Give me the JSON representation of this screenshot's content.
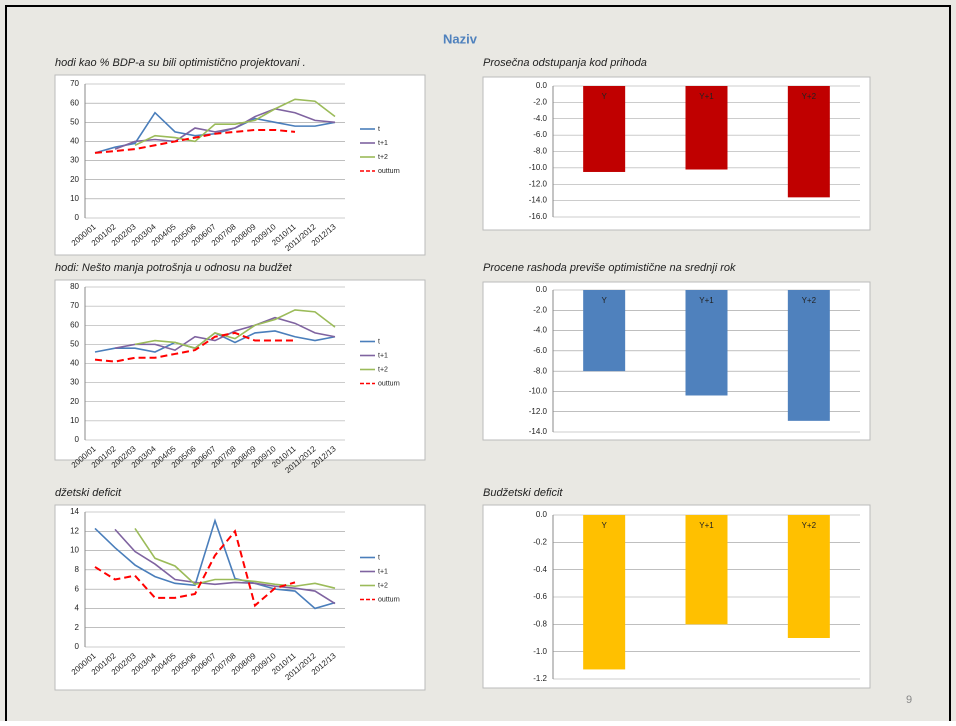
{
  "title": "Naziv",
  "page_number": "9",
  "chart_data": [
    {
      "type": "line",
      "title": "hodi kao % BDP-a  su bili optimistično projektovani .",
      "categories": [
        "2000/01",
        "2001/02",
        "2002/03",
        "2003/04",
        "2004/05",
        "2005/06",
        "2006/07",
        "2007/08",
        "2008/09",
        "2009/10",
        "2010/11",
        "2011/2012",
        "2012/13"
      ],
      "series": [
        {
          "name": "t",
          "color": "#4a7ebb",
          "values": [
            34,
            37,
            39,
            55,
            45,
            43,
            44,
            47,
            52,
            50,
            48,
            48,
            50
          ]
        },
        {
          "name": "t+1",
          "color": "#7f63a0",
          "values": [
            null,
            36,
            40,
            41,
            40,
            47,
            45,
            47,
            53,
            57,
            55,
            51,
            50
          ]
        },
        {
          "name": "t+2",
          "color": "#9bbb59",
          "values": [
            null,
            null,
            38,
            43,
            42,
            40,
            49,
            49,
            51,
            57,
            62,
            61,
            53
          ]
        },
        {
          "name": "outturn",
          "color": "#ff0000",
          "dashed": true,
          "values": [
            34,
            35,
            36,
            38,
            40,
            42,
            44,
            45,
            46,
            46,
            45,
            null,
            null
          ]
        }
      ],
      "ylim": [
        0,
        70
      ],
      "yticks": [
        0,
        10,
        20,
        30,
        40,
        50,
        60,
        70
      ],
      "grid": true
    },
    {
      "type": "line",
      "title": "hodi: Nešto manja potrošnja u odnosu na budžet",
      "categories": [
        "2000/01",
        "2001/02",
        "2002/03",
        "2003/04",
        "2004/05",
        "2005/06",
        "2006/07",
        "2007/08",
        "2008/09",
        "2009/10",
        "2010/11",
        "2011/2012",
        "2012/13"
      ],
      "series": [
        {
          "name": "t",
          "color": "#4a7ebb",
          "values": [
            46,
            48,
            48,
            46,
            51,
            48,
            56,
            51,
            56,
            57,
            54,
            52,
            54
          ]
        },
        {
          "name": "t+1",
          "color": "#7f63a0",
          "values": [
            null,
            48,
            50,
            50,
            47,
            54,
            52,
            57,
            60,
            64,
            61,
            56,
            54
          ]
        },
        {
          "name": "t+2",
          "color": "#9bbb59",
          "values": [
            null,
            null,
            50,
            52,
            51,
            48,
            56,
            53,
            60,
            63,
            68,
            67,
            59
          ]
        },
        {
          "name": "outturn",
          "color": "#ff0000",
          "dashed": true,
          "values": [
            42,
            41,
            43,
            43,
            45,
            47,
            54,
            56,
            52,
            52,
            52,
            null,
            null
          ]
        }
      ],
      "ylim": [
        0,
        80
      ],
      "yticks": [
        0,
        10,
        20,
        30,
        40,
        50,
        60,
        70,
        80
      ],
      "grid": true
    },
    {
      "type": "line",
      "title": "džetski deficit",
      "categories": [
        "2000/01",
        "2001/02",
        "2002/03",
        "2003/04",
        "2004/05",
        "2005/06",
        "2006/07",
        "2007/08",
        "2008/09",
        "2009/10",
        "2010/11",
        "2011/2012",
        "2012/13"
      ],
      "series": [
        {
          "name": "t",
          "color": "#4a7ebb",
          "values": [
            12.3,
            10.3,
            8.5,
            7.3,
            6.6,
            6.4,
            13.1,
            7.1,
            6.6,
            6.0,
            5.8,
            4.0,
            4.6
          ]
        },
        {
          "name": "t+1",
          "color": "#7f63a0",
          "values": [
            null,
            12.2,
            9.9,
            8.6,
            7.0,
            6.7,
            6.5,
            6.7,
            6.6,
            6.3,
            6.1,
            5.8,
            4.5
          ]
        },
        {
          "name": "t+2",
          "color": "#9bbb59",
          "values": [
            null,
            null,
            12.3,
            9.2,
            8.4,
            6.5,
            7.0,
            7.0,
            6.8,
            6.5,
            6.3,
            6.6,
            6.1
          ]
        },
        {
          "name": "outturn",
          "color": "#ff0000",
          "dashed": true,
          "values": [
            8.3,
            7.0,
            7.4,
            5.1,
            5.1,
            5.5,
            9.5,
            12.0,
            4.3,
            6.1,
            6.7,
            null,
            null
          ]
        }
      ],
      "ylim": [
        0,
        14
      ],
      "yticks": [
        0,
        2,
        4,
        6,
        8,
        10,
        12,
        14
      ],
      "grid": true
    },
    {
      "type": "bar",
      "title": "Prosečna odstupanja kod prihoda",
      "categories": [
        "Y",
        "Y+1",
        "Y+2"
      ],
      "values": [
        -10.5,
        -10.2,
        -13.6
      ],
      "color": "#c00000",
      "ylim": [
        -16,
        0
      ],
      "yticks": [
        {
          "value": 0,
          "label": "0.0"
        },
        {
          "value": -2,
          "label": "-2.0"
        },
        {
          "value": -4,
          "label": "-4.0"
        },
        {
          "value": -6,
          "label": "-6.0"
        },
        {
          "value": -8,
          "label": "-8.0"
        },
        {
          "value": -10,
          "label": "-10.0"
        },
        {
          "value": -12,
          "label": "-12.0"
        },
        {
          "value": -14,
          "label": "-14.0"
        },
        {
          "value": -16,
          "label": "-16.0"
        }
      ],
      "grid": true
    },
    {
      "type": "bar",
      "title": "Procene rashoda previše optimistične na srednji rok",
      "categories": [
        "Y",
        "Y+1",
        "Y+2"
      ],
      "values": [
        -8.0,
        -10.4,
        -12.9
      ],
      "color": "#4f81bd",
      "ylim": [
        -14,
        0
      ],
      "yticks": [
        {
          "value": 0,
          "label": "0.0"
        },
        {
          "value": -2,
          "label": "-2.0"
        },
        {
          "value": -4,
          "label": "-4.0"
        },
        {
          "value": -6,
          "label": "-6.0"
        },
        {
          "value": -8,
          "label": "-8.0"
        },
        {
          "value": -10,
          "label": "-10.0"
        },
        {
          "value": -12,
          "label": "-12.0"
        },
        {
          "value": -14,
          "label": "-14.0"
        }
      ],
      "grid": true
    },
    {
      "type": "bar",
      "title": "Budžetski deficit",
      "categories": [
        "Y",
        "Y+1",
        "Y+2"
      ],
      "values": [
        -1.13,
        -0.8,
        -0.9
      ],
      "color": "#ffc000",
      "ylim": [
        -1.2,
        0
      ],
      "yticks": [
        {
          "value": 0,
          "label": "0.0"
        },
        -0.2,
        -0.4,
        -0.6,
        -0.8,
        {
          "value": -1,
          "label": "-1.0"
        },
        -1.2
      ],
      "grid": true
    }
  ]
}
